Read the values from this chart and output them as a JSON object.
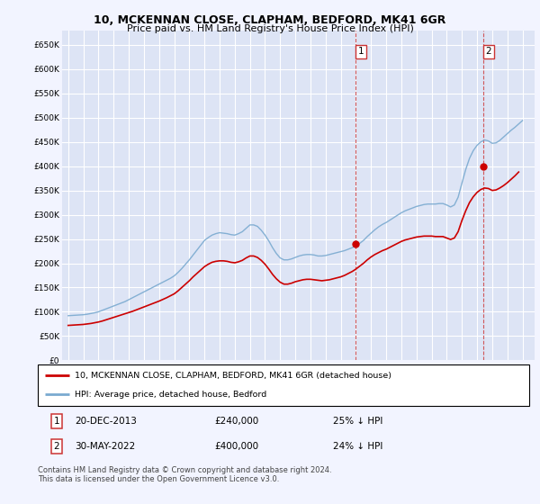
{
  "title1": "10, MCKENNAN CLOSE, CLAPHAM, BEDFORD, MK41 6GR",
  "title2": "Price paid vs. HM Land Registry's House Price Index (HPI)",
  "background_color": "#f2f4ff",
  "plot_bg_color": "#dde4f5",
  "grid_color": "#ffffff",
  "ylim": [
    0,
    680000
  ],
  "yticks": [
    0,
    50000,
    100000,
    150000,
    200000,
    250000,
    300000,
    350000,
    400000,
    450000,
    500000,
    550000,
    600000,
    650000
  ],
  "ytick_labels": [
    "£0",
    "£50K",
    "£100K",
    "£150K",
    "£200K",
    "£250K",
    "£300K",
    "£350K",
    "£400K",
    "£450K",
    "£500K",
    "£550K",
    "£600K",
    "£650K"
  ],
  "legend_line1": "10, MCKENNAN CLOSE, CLAPHAM, BEDFORD, MK41 6GR (detached house)",
  "legend_line2": "HPI: Average price, detached house, Bedford",
  "note1_date": "20-DEC-2013",
  "note1_price": "£240,000",
  "note1_pct": "25% ↓ HPI",
  "note2_date": "30-MAY-2022",
  "note2_price": "£400,000",
  "note2_pct": "24% ↓ HPI",
  "footer": "Contains HM Land Registry data © Crown copyright and database right 2024.\nThis data is licensed under the Open Government Licence v3.0.",
  "red_color": "#cc0000",
  "blue_color": "#7aaad0",
  "marker1_year": 2013.97,
  "marker1_value": 240000,
  "marker2_year": 2022.42,
  "marker2_value": 400000,
  "hpi_years": [
    1995,
    1995.25,
    1995.5,
    1995.75,
    1996,
    1996.25,
    1996.5,
    1996.75,
    1997,
    1997.25,
    1997.5,
    1997.75,
    1998,
    1998.25,
    1998.5,
    1998.75,
    1999,
    1999.25,
    1999.5,
    1999.75,
    2000,
    2000.25,
    2000.5,
    2000.75,
    2001,
    2001.25,
    2001.5,
    2001.75,
    2002,
    2002.25,
    2002.5,
    2002.75,
    2003,
    2003.25,
    2003.5,
    2003.75,
    2004,
    2004.25,
    2004.5,
    2004.75,
    2005,
    2005.25,
    2005.5,
    2005.75,
    2006,
    2006.25,
    2006.5,
    2006.75,
    2007,
    2007.25,
    2007.5,
    2007.75,
    2008,
    2008.25,
    2008.5,
    2008.75,
    2009,
    2009.25,
    2009.5,
    2009.75,
    2010,
    2010.25,
    2010.5,
    2010.75,
    2011,
    2011.25,
    2011.5,
    2011.75,
    2012,
    2012.25,
    2012.5,
    2012.75,
    2013,
    2013.25,
    2013.5,
    2013.75,
    2014,
    2014.25,
    2014.5,
    2014.75,
    2015,
    2015.25,
    2015.5,
    2015.75,
    2016,
    2016.25,
    2016.5,
    2016.75,
    2017,
    2017.25,
    2017.5,
    2017.75,
    2018,
    2018.25,
    2018.5,
    2018.75,
    2019,
    2019.25,
    2019.5,
    2019.75,
    2020,
    2020.25,
    2020.5,
    2020.75,
    2021,
    2021.25,
    2021.5,
    2021.75,
    2022,
    2022.25,
    2022.5,
    2022.75,
    2023,
    2023.25,
    2023.5,
    2023.75,
    2024,
    2024.25,
    2024.5,
    2024.75,
    2025
  ],
  "hpi_values": [
    92000,
    92500,
    93000,
    93500,
    94000,
    95000,
    96500,
    98000,
    100000,
    103000,
    106000,
    109000,
    112000,
    115000,
    118000,
    121000,
    125000,
    129000,
    133000,
    137000,
    141000,
    145000,
    149000,
    153000,
    157000,
    161000,
    165000,
    169000,
    174000,
    181000,
    189000,
    198000,
    207000,
    217000,
    227000,
    237000,
    247000,
    253000,
    258000,
    261000,
    263000,
    262000,
    261000,
    259000,
    258000,
    261000,
    265000,
    272000,
    279000,
    279000,
    276000,
    268000,
    258000,
    246000,
    232000,
    220000,
    211000,
    207000,
    207000,
    209000,
    212000,
    215000,
    217000,
    218000,
    218000,
    217000,
    215000,
    215000,
    216000,
    218000,
    220000,
    222000,
    224000,
    226000,
    229000,
    232000,
    236000,
    241000,
    247000,
    255000,
    262000,
    269000,
    275000,
    280000,
    284000,
    289000,
    294000,
    299000,
    304000,
    308000,
    311000,
    314000,
    317000,
    319000,
    321000,
    322000,
    322000,
    322000,
    323000,
    323000,
    320000,
    316000,
    320000,
    336000,
    365000,
    393000,
    416000,
    432000,
    443000,
    450000,
    454000,
    452000,
    447000,
    448000,
    453000,
    460000,
    467000,
    474000,
    480000,
    487000,
    494000
  ],
  "red_years": [
    1995,
    1995.25,
    1995.5,
    1995.75,
    1996,
    1996.25,
    1996.5,
    1996.75,
    1997,
    1997.25,
    1997.5,
    1997.75,
    1998,
    1998.25,
    1998.5,
    1998.75,
    1999,
    1999.25,
    1999.5,
    1999.75,
    2000,
    2000.25,
    2000.5,
    2000.75,
    2001,
    2001.25,
    2001.5,
    2001.75,
    2002,
    2002.25,
    2002.5,
    2002.75,
    2003,
    2003.25,
    2003.5,
    2003.75,
    2004,
    2004.25,
    2004.5,
    2004.75,
    2005,
    2005.25,
    2005.5,
    2005.75,
    2006,
    2006.25,
    2006.5,
    2006.75,
    2007,
    2007.25,
    2007.5,
    2007.75,
    2008,
    2008.25,
    2008.5,
    2008.75,
    2009,
    2009.25,
    2009.5,
    2009.75,
    2010,
    2010.25,
    2010.5,
    2010.75,
    2011,
    2011.25,
    2011.5,
    2011.75,
    2012,
    2012.25,
    2012.5,
    2012.75,
    2013,
    2013.25,
    2013.5,
    2013.75,
    2014,
    2014.25,
    2014.5,
    2014.75,
    2015,
    2015.25,
    2015.5,
    2015.75,
    2016,
    2016.25,
    2016.5,
    2016.75,
    2017,
    2017.25,
    2017.5,
    2017.75,
    2018,
    2018.25,
    2018.5,
    2018.75,
    2019,
    2019.25,
    2019.5,
    2019.75,
    2020,
    2020.25,
    2020.5,
    2020.75,
    2021,
    2021.25,
    2021.5,
    2021.75,
    2022,
    2022.25,
    2022.5,
    2022.75,
    2023,
    2023.25,
    2023.5,
    2023.75,
    2024,
    2024.25,
    2024.5,
    2024.75
  ],
  "red_values": [
    72000,
    72500,
    73000,
    73500,
    74000,
    75000,
    76000,
    77500,
    79000,
    81000,
    83500,
    86000,
    88500,
    91000,
    93500,
    96000,
    98500,
    101000,
    104000,
    107000,
    110000,
    113000,
    116000,
    119000,
    122000,
    125500,
    129000,
    133000,
    137000,
    143000,
    150000,
    157000,
    164000,
    172000,
    179000,
    186000,
    193000,
    198000,
    202000,
    204000,
    205000,
    205000,
    204000,
    202000,
    201000,
    203000,
    206000,
    211000,
    215000,
    215000,
    212000,
    206000,
    198000,
    188000,
    177000,
    168000,
    161000,
    157000,
    157000,
    159000,
    162000,
    164000,
    166000,
    167000,
    167000,
    166000,
    165000,
    164000,
    165000,
    166000,
    168000,
    170000,
    172000,
    175000,
    179000,
    183000,
    188000,
    194000,
    200000,
    207000,
    213000,
    218000,
    222000,
    226000,
    229000,
    233000,
    237000,
    241000,
    245000,
    248000,
    250000,
    252000,
    254000,
    255000,
    256000,
    256000,
    256000,
    255000,
    255000,
    255000,
    252000,
    249000,
    252000,
    265000,
    288000,
    308000,
    325000,
    337000,
    346000,
    352000,
    355000,
    354000,
    350000,
    351000,
    355000,
    360000,
    366000,
    373000,
    380000,
    388000
  ]
}
